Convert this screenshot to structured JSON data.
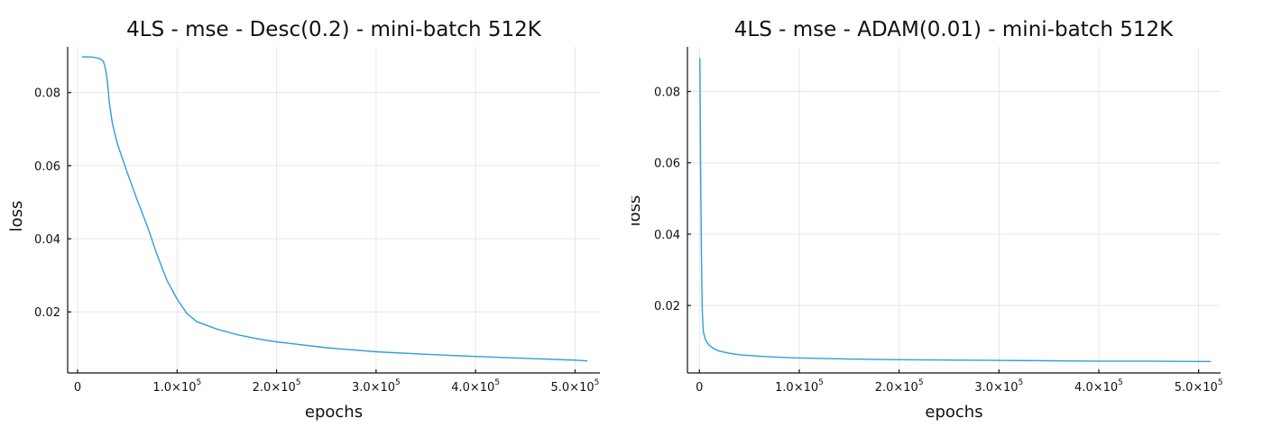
{
  "figure": {
    "series_color": "#2f9ee0"
  },
  "chart_data": [
    {
      "type": "line",
      "title": "4LS - mse - Desc(0.2) - mini-batch 512K",
      "xlabel": "epochs",
      "ylabel": "loss",
      "xlim": [
        -10000,
        525000
      ],
      "ylim": [
        0.0033,
        0.0925
      ],
      "grid": true,
      "legend": "none",
      "x_ticks": [
        {
          "value": 0,
          "mantissa": "0",
          "exp": ""
        },
        {
          "value": 100000,
          "mantissa": "1.0×10",
          "exp": "5"
        },
        {
          "value": 200000,
          "mantissa": "2.0×10",
          "exp": "5"
        },
        {
          "value": 300000,
          "mantissa": "3.0×10",
          "exp": "5"
        },
        {
          "value": 400000,
          "mantissa": "4.0×10",
          "exp": "5"
        },
        {
          "value": 500000,
          "mantissa": "5.0×10",
          "exp": "5"
        }
      ],
      "y_ticks": [
        {
          "value": 0.02,
          "label": "0.02"
        },
        {
          "value": 0.04,
          "label": "0.04"
        },
        {
          "value": 0.06,
          "label": "0.06"
        },
        {
          "value": 0.08,
          "label": "0.08"
        }
      ],
      "x": [
        5000,
        15000,
        22000,
        26000,
        28000,
        30000,
        32000,
        35000,
        40000,
        50000,
        60000,
        70000,
        80000,
        90000,
        100000,
        110000,
        120000,
        140000,
        160000,
        180000,
        200000,
        250000,
        300000,
        350000,
        400000,
        450000,
        500000,
        512000
      ],
      "y": [
        0.0898,
        0.0897,
        0.0893,
        0.0885,
        0.0865,
        0.083,
        0.077,
        0.0715,
        0.066,
        0.058,
        0.0505,
        0.0435,
        0.0355,
        0.0285,
        0.0235,
        0.0195,
        0.0173,
        0.0153,
        0.0138,
        0.0127,
        0.0118,
        0.0102,
        0.0091,
        0.0084,
        0.0078,
        0.0073,
        0.0068,
        0.0066
      ]
    },
    {
      "type": "line",
      "title": "4LS - mse - ADAM(0.01) - mini-batch 512K",
      "xlabel": "epochs",
      "ylabel": "loss",
      "xlim": [
        -12000,
        522000
      ],
      "ylim": [
        0.0011,
        0.0925
      ],
      "grid": true,
      "legend": "none",
      "x_ticks": [
        {
          "value": 0,
          "mantissa": "0",
          "exp": ""
        },
        {
          "value": 100000,
          "mantissa": "1.0×10",
          "exp": "5"
        },
        {
          "value": 200000,
          "mantissa": "2.0×10",
          "exp": "5"
        },
        {
          "value": 300000,
          "mantissa": "3.0×10",
          "exp": "5"
        },
        {
          "value": 400000,
          "mantissa": "4.0×10",
          "exp": "5"
        },
        {
          "value": 500000,
          "mantissa": "5.0×10",
          "exp": "5"
        }
      ],
      "y_ticks": [
        {
          "value": 0.02,
          "label": "0.02"
        },
        {
          "value": 0.04,
          "label": "0.04"
        },
        {
          "value": 0.06,
          "label": "0.06"
        },
        {
          "value": 0.08,
          "label": "0.08"
        }
      ],
      "x": [
        500,
        1000,
        1500,
        2000,
        2500,
        3000,
        4000,
        6000,
        8000,
        10000,
        15000,
        20000,
        30000,
        40000,
        60000,
        80000,
        100000,
        150000,
        200000,
        250000,
        300000,
        350000,
        400000,
        450000,
        500000,
        512000
      ],
      "y": [
        0.0892,
        0.065,
        0.05,
        0.035,
        0.025,
        0.0175,
        0.0125,
        0.0105,
        0.0095,
        0.0088,
        0.0078,
        0.0072,
        0.0066,
        0.0062,
        0.0058,
        0.0055,
        0.0053,
        0.005,
        0.0048,
        0.0047,
        0.0046,
        0.0045,
        0.0044,
        0.0044,
        0.0043,
        0.0043
      ]
    }
  ]
}
